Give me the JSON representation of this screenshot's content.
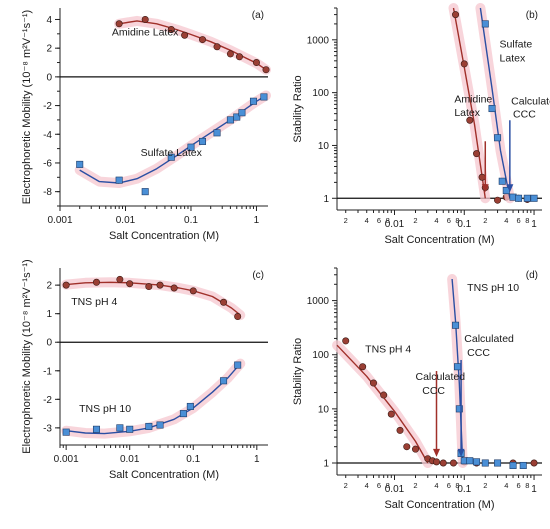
{
  "colors": {
    "red": "#a0302a",
    "red_marker": "#9a3f34",
    "blue": "#2b4fa3",
    "blue_marker": "#4a8fd6",
    "band": "#f6c7cf",
    "ref": "#111111"
  },
  "chart_data": [
    {
      "panel": "(a)",
      "type": "scatter",
      "xlabel": "Salt Concentration (M)",
      "ylabel": "Electrophoretic Mobility (10⁻⁸ m²V⁻¹s⁻¹)",
      "xscale": "log",
      "xlim": [
        0.001,
        1.5
      ],
      "ylim": [
        -9,
        4.8
      ],
      "xticks": [
        {
          "v": 0.001,
          "label": "0.001"
        },
        {
          "v": 0.01,
          "label": "0.01"
        },
        {
          "v": 0.1,
          "label": "0.1"
        },
        {
          "v": 1,
          "label": "1"
        }
      ],
      "yticks": [
        {
          "v": 4,
          "label": "4"
        },
        {
          "v": 2,
          "label": "2"
        },
        {
          "v": 0,
          "label": "0"
        },
        {
          "v": -2,
          "label": "-2"
        },
        {
          "v": -4,
          "label": "-4"
        },
        {
          "v": -6,
          "label": "-6"
        },
        {
          "v": -8,
          "label": "-8"
        }
      ],
      "refline": 0,
      "series": [
        {
          "name": "Amidine Latex",
          "color": "red",
          "marker": "circle",
          "x": [
            0.008,
            0.02,
            0.05,
            0.08,
            0.15,
            0.25,
            0.4,
            0.55,
            1.0,
            1.4
          ],
          "y": [
            3.7,
            4.0,
            3.3,
            2.9,
            2.6,
            2.1,
            1.6,
            1.4,
            1.0,
            0.5
          ],
          "fit": {
            "x": [
              0.008,
              0.015,
              0.03,
              0.06,
              0.1,
              0.2,
              0.4,
              0.7,
              1.0,
              1.4
            ],
            "y": [
              3.7,
              3.9,
              3.7,
              3.3,
              2.95,
              2.45,
              1.85,
              1.3,
              0.95,
              0.5
            ]
          }
        },
        {
          "name": "Sulfate Latex",
          "color": "blue",
          "marker": "square",
          "x": [
            0.002,
            0.008,
            0.02,
            0.05,
            0.1,
            0.15,
            0.25,
            0.4,
            0.5,
            0.6,
            0.9,
            1.3
          ],
          "y": [
            -6.1,
            -7.2,
            -8.0,
            -5.6,
            -4.9,
            -4.5,
            -3.9,
            -3.0,
            -2.8,
            -2.5,
            -1.7,
            -1.4
          ],
          "fit": {
            "x": [
              0.002,
              0.004,
              0.008,
              0.015,
              0.03,
              0.06,
              0.1,
              0.2,
              0.4,
              0.7,
              1.0,
              1.4
            ],
            "y": [
              -6.5,
              -7.3,
              -7.4,
              -7.1,
              -6.4,
              -5.5,
              -4.8,
              -3.9,
              -3.0,
              -2.2,
              -1.7,
              -1.3
            ]
          }
        }
      ],
      "annotations": [
        {
          "text": "Amidine Latex",
          "x": 0.0062,
          "y": 2.9
        },
        {
          "text": "Sulfate Latex",
          "x": 0.017,
          "y": -5.5
        }
      ]
    },
    {
      "panel": "(b)",
      "type": "scatter",
      "xlabel": "Salt Concentration (M)",
      "ylabel": "Stability Ratio",
      "xscale": "log",
      "yscale": "log",
      "xlim": [
        0.0015,
        1.3
      ],
      "ylim": [
        0.6,
        4000
      ],
      "xticks": [
        {
          "v": 0.01,
          "label": "0.01"
        },
        {
          "v": 0.1,
          "label": "0.1"
        },
        {
          "v": 1,
          "label": "1"
        }
      ],
      "xminor": [
        {
          "v": 0.002,
          "label": "2"
        },
        {
          "v": 0.004,
          "label": "4"
        },
        {
          "v": 0.006,
          "label": "6"
        },
        {
          "v": 0.008,
          "label": "8"
        },
        {
          "v": 0.02,
          "label": "2"
        },
        {
          "v": 0.04,
          "label": "4"
        },
        {
          "v": 0.06,
          "label": "6"
        },
        {
          "v": 0.08,
          "label": "8"
        },
        {
          "v": 0.2,
          "label": "2"
        },
        {
          "v": 0.4,
          "label": "4"
        },
        {
          "v": 0.6,
          "label": "6"
        },
        {
          "v": 0.8,
          "label": "8"
        }
      ],
      "yticks": [
        {
          "v": 1,
          "label": "1"
        },
        {
          "v": 10,
          "label": "10"
        },
        {
          "v": 100,
          "label": "100"
        },
        {
          "v": 1000,
          "label": "1000"
        }
      ],
      "refline": 1,
      "series": [
        {
          "name": "Amidine Latex",
          "color": "red",
          "marker": "circle",
          "x": [
            0.075,
            0.1,
            0.12,
            0.15,
            0.18,
            0.2,
            0.3,
            0.4,
            0.6,
            0.8
          ],
          "y": [
            3000,
            350,
            30,
            7,
            2.5,
            1.6,
            0.92,
            1.05,
            1.0,
            0.95
          ],
          "fit": {
            "x": [
              0.07,
              0.1,
              0.14,
              0.2
            ],
            "y": [
              4000,
              300,
              25,
              1
            ]
          }
        },
        {
          "name": "Sulfate Latex",
          "color": "blue",
          "marker": "square",
          "x": [
            0.2,
            0.25,
            0.3,
            0.35,
            0.4,
            0.5,
            0.6,
            0.8,
            1.0
          ],
          "y": [
            2000,
            50,
            14,
            2.1,
            1.4,
            1.05,
            1.0,
            1.0,
            1.0
          ],
          "fit": {
            "x": [
              0.17,
              0.25,
              0.33,
              0.45
            ],
            "y": [
              4000,
              120,
              8,
              1
            ]
          }
        }
      ],
      "arrows": [
        {
          "color": "red",
          "x": 0.2,
          "y_from": 12,
          "y_to": 1.3
        },
        {
          "color": "blue",
          "x": 0.45,
          "y_from": 30,
          "y_to": 1.3
        }
      ],
      "annotations": [
        {
          "text": "Amidine",
          "x": 0.072,
          "y": 65
        },
        {
          "text": "Latex",
          "x": 0.072,
          "y": 36
        },
        {
          "text": "Sulfate",
          "x": 0.32,
          "y": 720
        },
        {
          "text": "Latex",
          "x": 0.32,
          "y": 390
        },
        {
          "text": "Calculated",
          "x": 0.47,
          "y": 60
        },
        {
          "text": "CCC",
          "x": 0.5,
          "y": 34
        }
      ]
    },
    {
      "panel": "(c)",
      "type": "scatter",
      "xlabel": "Salt Concentration (M)",
      "ylabel": "Electrophoretic Mobility (10⁻⁸ m²V⁻¹s⁻¹)",
      "xscale": "log",
      "xlim": [
        0.0008,
        1.5
      ],
      "ylim": [
        -3.6,
        2.6
      ],
      "xticks": [
        {
          "v": 0.001,
          "label": "0.001"
        },
        {
          "v": 0.01,
          "label": "0.01"
        },
        {
          "v": 0.1,
          "label": "0.1"
        },
        {
          "v": 1,
          "label": "1"
        }
      ],
      "yticks": [
        {
          "v": 2,
          "label": "2"
        },
        {
          "v": 1,
          "label": "1"
        },
        {
          "v": 0,
          "label": "0"
        },
        {
          "v": -1,
          "label": "-1"
        },
        {
          "v": -2,
          "label": "-2"
        },
        {
          "v": -3,
          "label": "-3"
        }
      ],
      "refline": 0,
      "series": [
        {
          "name": "TNS pH 4",
          "color": "red",
          "marker": "circle",
          "x": [
            0.001,
            0.003,
            0.007,
            0.01,
            0.02,
            0.03,
            0.05,
            0.1,
            0.3,
            0.5
          ],
          "y": [
            2.0,
            2.1,
            2.2,
            2.05,
            1.95,
            2.0,
            1.9,
            1.8,
            1.4,
            0.9
          ],
          "fit": {
            "x": [
              0.001,
              0.002,
              0.005,
              0.01,
              0.03,
              0.06,
              0.1,
              0.2,
              0.4,
              0.55
            ],
            "y": [
              2.02,
              2.08,
              2.1,
              2.08,
              2.0,
              1.9,
              1.8,
              1.6,
              1.2,
              0.95
            ]
          }
        },
        {
          "name": "TNS pH 10",
          "color": "blue",
          "marker": "square",
          "x": [
            0.001,
            0.003,
            0.007,
            0.01,
            0.02,
            0.03,
            0.07,
            0.09,
            0.3,
            0.5
          ],
          "y": [
            -3.15,
            -3.05,
            -3.0,
            -3.05,
            -2.95,
            -2.9,
            -2.5,
            -2.25,
            -1.35,
            -0.8
          ],
          "fit": {
            "x": [
              0.001,
              0.002,
              0.004,
              0.01,
              0.02,
              0.05,
              0.1,
              0.2,
              0.35,
              0.55
            ],
            "y": [
              -3.1,
              -3.18,
              -3.2,
              -3.12,
              -3.0,
              -2.7,
              -2.3,
              -1.75,
              -1.25,
              -0.75
            ]
          }
        }
      ],
      "annotations": [
        {
          "text": "TNS pH 4",
          "x": 0.0012,
          "y": 1.3
        },
        {
          "text": "TNS pH 10",
          "x": 0.0016,
          "y": -2.45
        }
      ]
    },
    {
      "panel": "(d)",
      "type": "scatter",
      "xlabel": "Salt Concentration (M)",
      "ylabel": "Stability Ratio",
      "xscale": "log",
      "yscale": "log",
      "xlim": [
        0.0015,
        1.3
      ],
      "ylim": [
        0.6,
        4000
      ],
      "xticks": [
        {
          "v": 0.01,
          "label": "0.01"
        },
        {
          "v": 0.1,
          "label": "0.1"
        },
        {
          "v": 1,
          "label": "1"
        }
      ],
      "xminor": [
        {
          "v": 0.002,
          "label": "2"
        },
        {
          "v": 0.004,
          "label": "4"
        },
        {
          "v": 0.006,
          "label": "6"
        },
        {
          "v": 0.008,
          "label": "8"
        },
        {
          "v": 0.02,
          "label": "2"
        },
        {
          "v": 0.04,
          "label": "4"
        },
        {
          "v": 0.06,
          "label": "6"
        },
        {
          "v": 0.08,
          "label": "8"
        },
        {
          "v": 0.2,
          "label": "2"
        },
        {
          "v": 0.4,
          "label": "4"
        },
        {
          "v": 0.6,
          "label": "6"
        },
        {
          "v": 0.8,
          "label": "8"
        }
      ],
      "yticks": [
        {
          "v": 1,
          "label": "1"
        },
        {
          "v": 10,
          "label": "10"
        },
        {
          "v": 100,
          "label": "100"
        },
        {
          "v": 1000,
          "label": "1000"
        }
      ],
      "refline": 1,
      "series": [
        {
          "name": "TNS pH 4",
          "color": "red",
          "marker": "circle",
          "x": [
            0.002,
            0.0035,
            0.005,
            0.007,
            0.009,
            0.012,
            0.015,
            0.02,
            0.03,
            0.035,
            0.04,
            0.05,
            0.07,
            0.1,
            0.15,
            0.2,
            0.3,
            0.5,
            1.0
          ],
          "y": [
            180,
            60,
            30,
            18,
            8,
            4,
            2.0,
            1.8,
            1.2,
            1.1,
            1.05,
            1.0,
            1.0,
            1.05,
            1.0,
            1.0,
            1.0,
            1.0,
            1.0
          ],
          "fit": {
            "x": [
              0.0015,
              0.004,
              0.01,
              0.02,
              0.03
            ],
            "y": [
              150,
              40,
              9,
              2.5,
              1
            ]
          }
        },
        {
          "name": "TNS pH 10",
          "color": "blue",
          "marker": "square",
          "x": [
            0.075,
            0.08,
            0.085,
            0.09,
            0.1,
            0.12,
            0.15,
            0.2,
            0.3,
            0.5,
            0.7
          ],
          "y": [
            350,
            60,
            10,
            1.5,
            1.1,
            1.1,
            1.05,
            1.0,
            1.0,
            0.9,
            0.9
          ],
          "fit": {
            "x": [
              0.067,
              0.075,
              0.085,
              0.095
            ],
            "y": [
              2500,
              400,
              30,
              1
            ]
          }
        }
      ],
      "arrows": [
        {
          "color": "red",
          "x": 0.04,
          "y_from": 50,
          "y_to": 1.3
        },
        {
          "color": "blue",
          "x": 0.09,
          "y_from": 80,
          "y_to": 1.3
        }
      ],
      "annotations": [
        {
          "text": "TNS pH 10",
          "x": 0.11,
          "y": 1500
        },
        {
          "text": "TNS pH 4",
          "x": 0.0038,
          "y": 110
        },
        {
          "text": "Calculated",
          "x": 0.02,
          "y": 34
        },
        {
          "text": "CCC",
          "x": 0.025,
          "y": 19
        },
        {
          "text": "Calculated",
          "x": 0.1,
          "y": 170
        },
        {
          "text": "CCC",
          "x": 0.11,
          "y": 95
        }
      ]
    }
  ]
}
